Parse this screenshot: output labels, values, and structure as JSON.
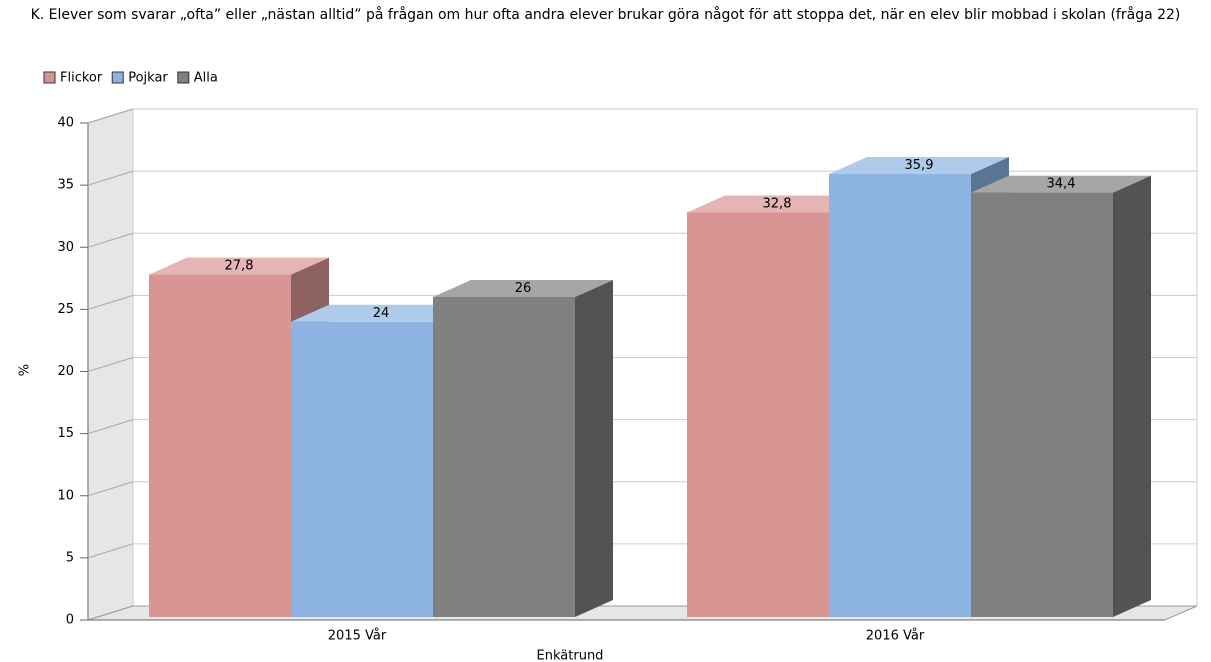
{
  "chart_data": {
    "type": "bar3d",
    "title": "K. Elever som svarar „ofta” eller „nästan alltid” på frågan om hur ofta andra elever brukar göra något för att stoppa det, när en elev blir mobbad i skolan (fråga 22)",
    "categories": [
      "2015 Vår",
      "2016 Vår"
    ],
    "series": [
      {
        "name": "Flickor",
        "color": "#d99594",
        "values": [
          27.8,
          32.8
        ],
        "value_labels": [
          "27,8",
          "32,8"
        ]
      },
      {
        "name": "Pojkar",
        "color": "#8db3e2",
        "values": [
          24,
          35.9
        ],
        "value_labels": [
          "24",
          "35,9"
        ]
      },
      {
        "name": "Alla",
        "color": "#808080",
        "values": [
          26,
          34.4
        ],
        "value_labels": [
          "26",
          "34,4"
        ]
      }
    ],
    "ylabel": "%",
    "xlabel": "Enkätrund",
    "ylim": [
      0,
      40
    ],
    "yticks": [
      0,
      5,
      10,
      15,
      20,
      25,
      30,
      35,
      40
    ],
    "grid": true,
    "legend": "top-left"
  }
}
